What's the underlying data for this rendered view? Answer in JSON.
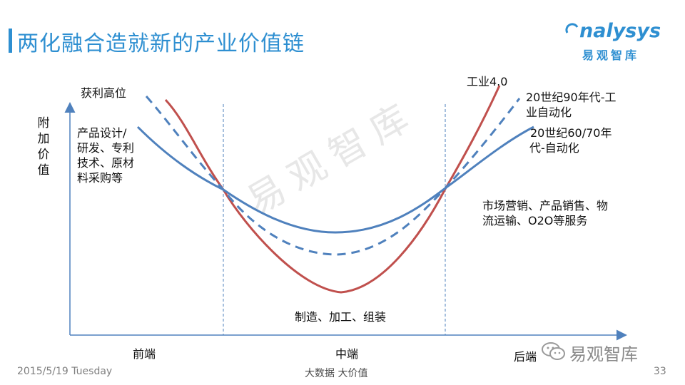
{
  "title": "两化融合造就新的产业价值链",
  "brand": {
    "en": "nalysys",
    "cn": "易观智库"
  },
  "y_axis_label": "附加价值",
  "x_labels": {
    "left": "前端",
    "middle": "中端",
    "right": "后端"
  },
  "annotations": {
    "top_left": "获利高位",
    "left_desc": [
      "产品设计/",
      "研发、专利",
      "技术、原材",
      "料采购等"
    ],
    "bottom_middle": "制造、加工、组装",
    "right_services": [
      "市场营销、产品销售、物",
      "流运输、O2O等服务"
    ],
    "industry40": "工业4.0",
    "era90": [
      "20世纪90年代-工",
      "业自动化"
    ],
    "era6070": [
      "20世纪60/70年",
      "代-自动化"
    ]
  },
  "watermark": "易观智库",
  "wechat_label": "易观智库",
  "footer": {
    "date": "2015/5/19 Tuesday",
    "center": "大数据   大价值",
    "page": "33"
  },
  "colors": {
    "accent": "#2e8fd1",
    "blue_curve": "#4f81bd",
    "red_curve": "#c0504d",
    "axis": "#4f81bd"
  },
  "chart_data": {
    "type": "line",
    "xlabel": "",
    "ylabel": "附加价值",
    "categories": [
      "前端",
      "中端",
      "后端"
    ],
    "series": [
      {
        "name": "工业4.0",
        "style": "solid",
        "color": "#c0504d"
      },
      {
        "name": "20世纪90年代-工业自动化",
        "style": "dashed",
        "color": "#4f81bd"
      },
      {
        "name": "20世纪60/70年代-自动化",
        "style": "solid",
        "color": "#4f81bd"
      }
    ],
    "grid": false
  }
}
